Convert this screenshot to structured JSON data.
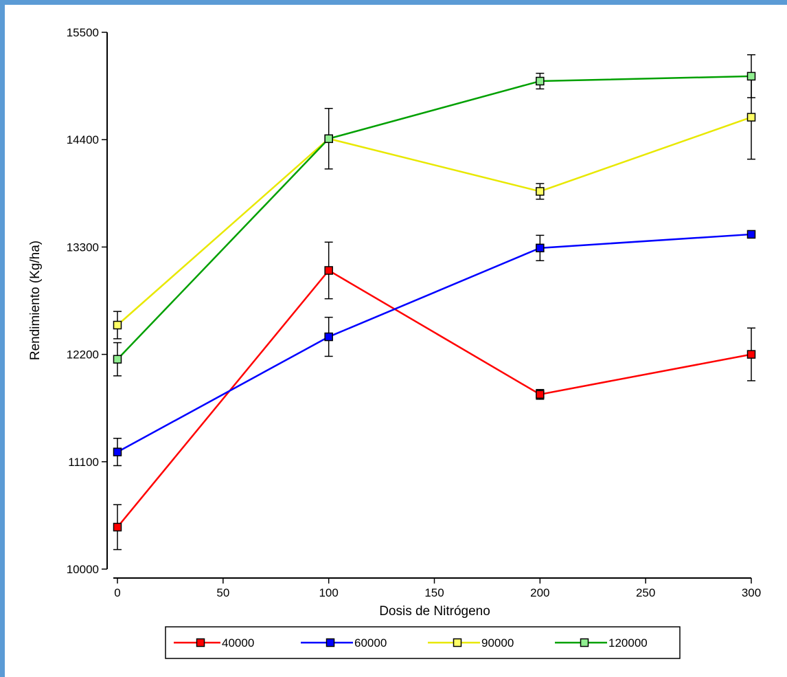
{
  "chart_data": {
    "type": "line",
    "xlabel": "Dosis de Nitrógeno",
    "ylabel": "Rendimiento (Kg/ha)",
    "xlim": [
      0,
      300
    ],
    "ylim": [
      10000,
      15500
    ],
    "x": [
      0,
      100,
      200,
      300
    ],
    "xticks": [
      0,
      50,
      100,
      150,
      200,
      250,
      300
    ],
    "yticks": [
      10000,
      11100,
      12200,
      13300,
      14400,
      15500
    ],
    "grid": false,
    "legend_position": "bottom",
    "series": [
      {
        "name": "40000",
        "color": "#ff0000",
        "marker_fill": "#ff0000",
        "values": [
          10430,
          13060,
          11790,
          12200
        ],
        "errors": [
          230,
          290,
          50,
          270
        ]
      },
      {
        "name": "60000",
        "color": "#0000ff",
        "marker_fill": "#0000ff",
        "values": [
          11200,
          12380,
          13290,
          13430
        ],
        "errors": [
          140,
          200,
          130,
          30
        ]
      },
      {
        "name": "90000",
        "color": "#e8e800",
        "marker_fill": "#ffff66",
        "values": [
          12500,
          14410,
          13870,
          14630
        ],
        "errors": [
          140,
          0,
          80,
          430
        ]
      },
      {
        "name": "120000",
        "color": "#00a000",
        "marker_fill": "#90ee90",
        "values": [
          12150,
          14410,
          15000,
          15050
        ],
        "errors": [
          170,
          310,
          80,
          220
        ]
      }
    ]
  }
}
